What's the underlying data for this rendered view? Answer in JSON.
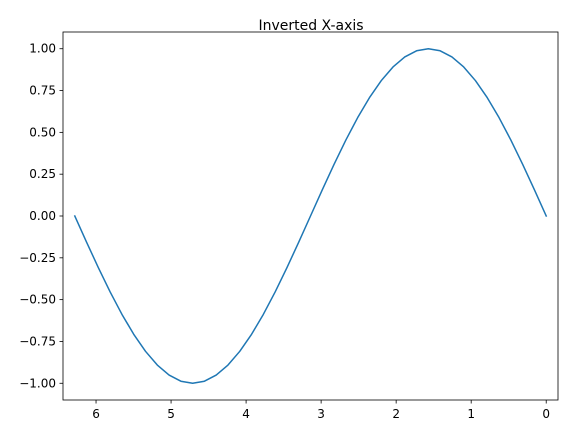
{
  "chart_data": {
    "type": "line",
    "title": "Inverted X-axis",
    "xlabel": "",
    "ylabel": "",
    "xlim": [
      6.4403,
      -0.1571
    ],
    "ylim": [
      -1.1,
      1.1
    ],
    "x_inverted": true,
    "grid": false,
    "legend": "none",
    "xticks": [
      {
        "value": 6,
        "label": "6"
      },
      {
        "value": 5,
        "label": "5"
      },
      {
        "value": 4,
        "label": "4"
      },
      {
        "value": 3,
        "label": "3"
      },
      {
        "value": 2,
        "label": "2"
      },
      {
        "value": 1,
        "label": "1"
      },
      {
        "value": 0,
        "label": "0"
      }
    ],
    "yticks": [
      {
        "value": 1.0,
        "label": "1.00"
      },
      {
        "value": 0.75,
        "label": "0.75"
      },
      {
        "value": 0.5,
        "label": "0.50"
      },
      {
        "value": 0.25,
        "label": "0.25"
      },
      {
        "value": 0.0,
        "label": "0.00"
      },
      {
        "value": -0.25,
        "label": "−0.25"
      },
      {
        "value": -0.5,
        "label": "−0.50"
      },
      {
        "value": -0.75,
        "label": "−0.75"
      },
      {
        "value": -1.0,
        "label": "−1.00"
      }
    ],
    "series": [
      {
        "color": "#1f77b4",
        "x": [
          0.0,
          0.1571,
          0.3142,
          0.4712,
          0.6283,
          0.7854,
          0.9425,
          1.0996,
          1.2566,
          1.4137,
          1.5708,
          1.7279,
          1.885,
          2.042,
          2.1991,
          2.3562,
          2.5133,
          2.6704,
          2.8274,
          2.9845,
          3.1416,
          3.2987,
          3.4558,
          3.6128,
          3.7699,
          3.927,
          4.0841,
          4.2412,
          4.3982,
          4.5553,
          4.7124,
          4.8695,
          5.0265,
          5.1836,
          5.3407,
          5.4978,
          5.6549,
          5.8119,
          5.969,
          6.1261,
          6.2832
        ],
        "y": [
          0.0,
          0.1564,
          0.309,
          0.454,
          0.5878,
          0.7071,
          0.809,
          0.891,
          0.9511,
          0.9877,
          1.0,
          0.9877,
          0.9511,
          0.891,
          0.809,
          0.7071,
          0.5878,
          0.454,
          0.309,
          0.1564,
          0.0,
          -0.1564,
          -0.309,
          -0.454,
          -0.5878,
          -0.7071,
          -0.809,
          -0.891,
          -0.9511,
          -0.9877,
          -1.0,
          -0.9877,
          -0.9511,
          -0.891,
          -0.809,
          -0.7071,
          -0.5878,
          -0.454,
          -0.309,
          -0.1564,
          0.0
        ]
      }
    ]
  }
}
